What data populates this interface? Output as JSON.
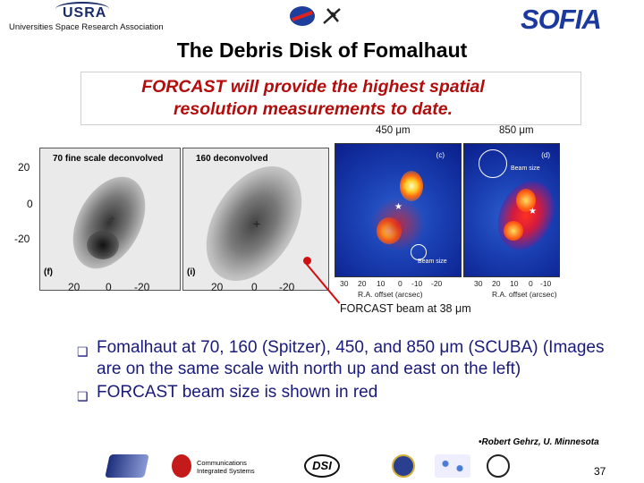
{
  "header": {
    "usra_logo_text": "USRA",
    "usra_subtitle": "Universities Space Research Association",
    "sofia_logo_text": "SOFIA",
    "slide_title": "The Debris Disk of Fomalhaut"
  },
  "callout": {
    "line1": "FORCAST will provide the highest spatial",
    "line2": "resolution measurements to date."
  },
  "panels": {
    "grey_left_label": "70 fine scale deconvolved",
    "grey_right_label": "160 deconvolved",
    "grey_left_letter": "(f)",
    "grey_right_letter": "(i)",
    "blue_left_header": "450 μm",
    "blue_right_header": "850 μm",
    "blue_left_letter": "(c)",
    "blue_right_letter": "(d)",
    "beam_size_label": "Beam size",
    "blue_x_axis_label": "R.A. offset (arcsec)",
    "blue_ticks": [
      "30",
      "20",
      "10",
      "0",
      "-10",
      "-20"
    ],
    "y_ticks": [
      "20",
      "0",
      "-20"
    ],
    "x_ticks_left": [
      "20",
      "0",
      "-20"
    ],
    "x_ticks_right": [
      "20",
      "0",
      "-20"
    ],
    "forcast_beam_label": "FORCAST beam at 38 μm"
  },
  "bullets": [
    "Fomalhaut at 70, 160 (Spitzer), 450, and 850 μm (SCUBA) (Images are on the same scale with north up and east on the left)",
    "FORCAST beam size is shown in red"
  ],
  "credit": "•Robert Gehrz, U. Minnesota",
  "page_number": "37",
  "footer": {
    "comm_line1": "Communications",
    "comm_line2": "Integrated Systems",
    "dsi_text": "DSI"
  },
  "colors": {
    "title_red": "#b30c0c",
    "bullet_blue": "#1a1a7a",
    "sofia_blue": "#1c3a9e",
    "beam_red": "#d01010"
  }
}
